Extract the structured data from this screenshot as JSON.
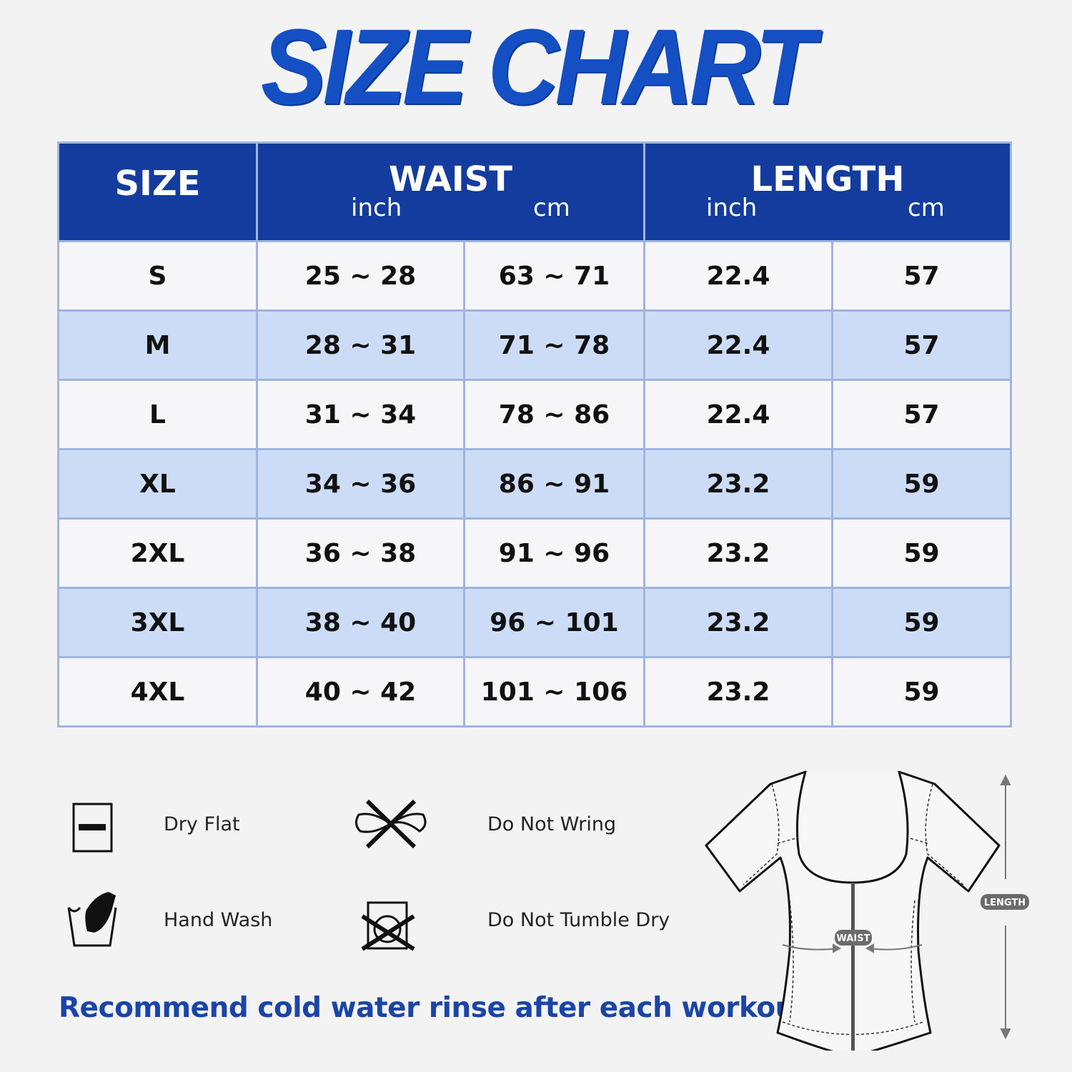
{
  "title": "SIZE CHART",
  "table": {
    "headers": {
      "size": "SIZE",
      "waist": "WAIST",
      "length": "LENGTH",
      "unit_inch": "inch",
      "unit_cm": "cm"
    },
    "rows": [
      {
        "size": "S",
        "waist_inch": "25 ~ 28",
        "waist_cm": "63 ~ 71",
        "length_inch": "22.4",
        "length_cm": "57"
      },
      {
        "size": "M",
        "waist_inch": "28 ~ 31",
        "waist_cm": "71 ~ 78",
        "length_inch": "22.4",
        "length_cm": "57"
      },
      {
        "size": "L",
        "waist_inch": "31 ~ 34",
        "waist_cm": "78 ~ 86",
        "length_inch": "22.4",
        "length_cm": "57"
      },
      {
        "size": "XL",
        "waist_inch": "34 ~ 36",
        "waist_cm": "86 ~ 91",
        "length_inch": "23.2",
        "length_cm": "59"
      },
      {
        "size": "2XL",
        "waist_inch": "36 ~ 38",
        "waist_cm": "91 ~ 96",
        "length_inch": "23.2",
        "length_cm": "59"
      },
      {
        "size": "3XL",
        "waist_inch": "38 ~ 40",
        "waist_cm": "96 ~ 101",
        "length_inch": "23.2",
        "length_cm": "59"
      },
      {
        "size": "4XL",
        "waist_inch": "40 ~ 42",
        "waist_cm": "101 ~ 106",
        "length_inch": "23.2",
        "length_cm": "59"
      }
    ]
  },
  "care": [
    {
      "icon": "dry-flat-icon",
      "label": "Dry Flat"
    },
    {
      "icon": "do-not-wring-icon",
      "label": "Do Not Wring"
    },
    {
      "icon": "hand-wash-icon",
      "label": "Hand Wash"
    },
    {
      "icon": "do-not-tumble-dry-icon",
      "label": "Do Not Tumble Dry"
    }
  ],
  "note": "Recommend cold water rinse after each workout.",
  "diagram": {
    "waist_label": "WAIST",
    "length_label": "LENGTH"
  },
  "colors": {
    "header": "#143c9e",
    "title": "#1450c4",
    "row_alt": "#cddcf6",
    "note": "#1a45a8"
  }
}
